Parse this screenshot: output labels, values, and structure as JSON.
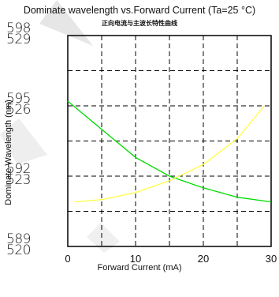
{
  "title": "Dominate wavelength vs.Forward Current (Ta=25 °C)",
  "subtitle": "正向电流与主波长特性曲线",
  "chart_data": {
    "type": "line",
    "title": "Dominate wavelength vs.Forward Current (Ta=25 °C)",
    "subtitle": "正向电流与主波长特性曲线",
    "xlabel": "Forward  Current  (mA)",
    "ylabel": "Dominate Wavelength  (nm)",
    "xlim": [
      0,
      30
    ],
    "x_ticks": [
      "0",
      "10",
      "20",
      "30"
    ],
    "y_ticks_left": [
      "598",
      "595",
      "592",
      "589"
    ],
    "y_ticks_right": [
      "529",
      "526",
      "523",
      "520"
    ],
    "ylim_left": [
      589,
      598
    ],
    "ylim_right": [
      520,
      529
    ],
    "grid": true,
    "series": [
      {
        "axis": "left",
        "color": "#00dd00",
        "x": [
          0,
          5,
          10,
          15,
          20,
          25,
          30
        ],
        "y": [
          595.2,
          594.0,
          592.8,
          592.0,
          591.5,
          591.1,
          590.9
        ]
      },
      {
        "axis": "right",
        "color": "#ffff44",
        "x": [
          1,
          5,
          10,
          15,
          20,
          25,
          29
        ],
        "y": [
          521.9,
          522.0,
          522.3,
          522.8,
          523.5,
          524.6,
          526.0
        ]
      }
    ]
  }
}
